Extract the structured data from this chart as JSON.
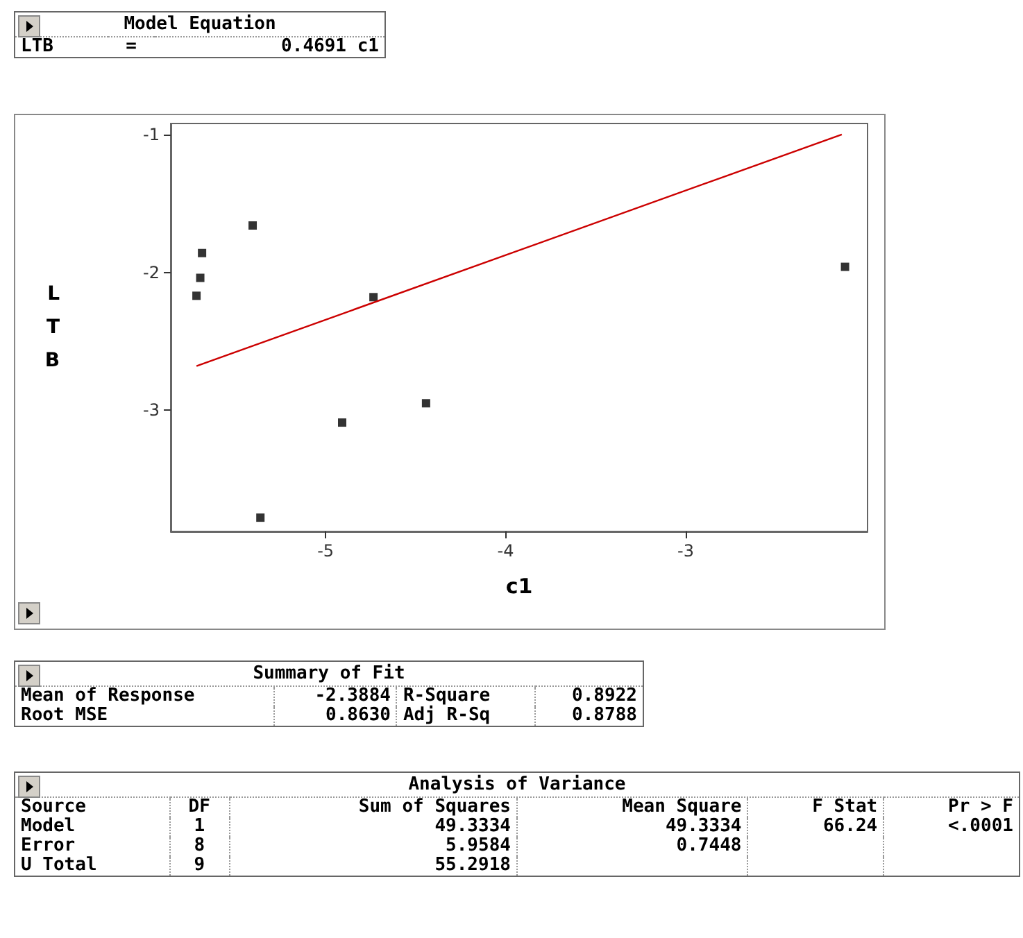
{
  "chart_data": {
    "type": "scatter",
    "xlabel": "c1",
    "ylabel": "LTB",
    "grid": false,
    "xlim": [
      -5.86,
      -1.99
    ],
    "ylim": [
      -3.88,
      -0.92
    ],
    "xticks": [
      -5,
      -4,
      -3
    ],
    "yticks": [
      -3,
      -2,
      -1
    ],
    "series": [
      {
        "color": "#000000",
        "marker": "square",
        "x": [
          -5.405,
          -5.686,
          -5.696,
          -5.717,
          -4.734,
          -4.442,
          -4.908,
          -5.362,
          -2.115
        ],
        "values": [
          -1.66,
          -1.86,
          -2.04,
          -2.17,
          -2.18,
          -2.95,
          -3.09,
          -3.78,
          -1.96
        ]
      },
      {
        "type": "line",
        "color": "#cc0000",
        "line_style": "solid",
        "x": [
          -5.717,
          -2.133
        ],
        "marker": "none",
        "values": [
          -2.68,
          -1.0
        ]
      }
    ],
    "annotations": [
      "Model Equation",
      "LTB\t=\t0.4691 c1",
      "Summary of Fit",
      "Mean of Response\t-2.3884\tR-Square\t0.8922",
      "Root MSE\t0.8630\tAdj R-Sq\t0.8788",
      "Analysis of Variance",
      "Source\tDF\tSum of Squares\tMean Square\tF Stat\tPr > F",
      "Model\t1\t49.3334\t49.3334\t66.24\t<.0001",
      "Error\t8\t5.9584\t0.7448\t\t",
      "U Total\t9\t55.2918\t\t\t"
    ]
  }
}
